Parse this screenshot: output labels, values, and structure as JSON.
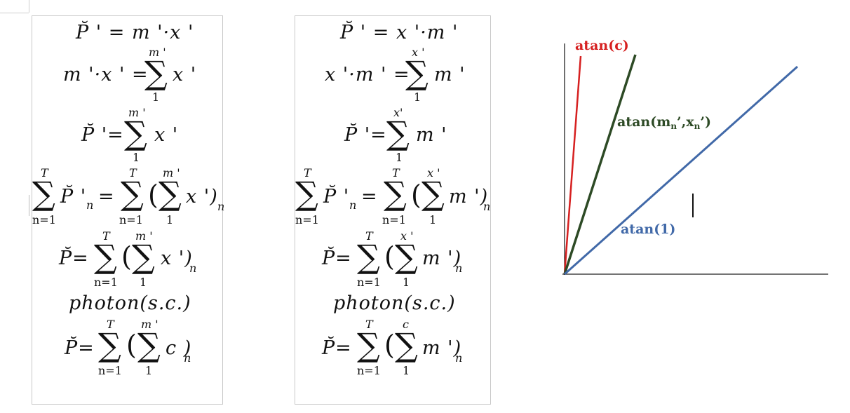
{
  "left_panel": {
    "eq1": "P̆ ' = m '·x '",
    "eq2_lhs": "m '·x ' =",
    "eq2_sum_top": "m '",
    "eq2_sum_bottom": "1",
    "eq2_rhs": "x '",
    "eq3_lhs": "P̆ '=",
    "eq3_sum_top": "m '",
    "eq3_sum_bottom": "1",
    "eq3_rhs": "x '",
    "eq4_sum1_top": "T",
    "eq4_sum1_bottom": "n=1",
    "eq4_mid": "P̆ '",
    "eq4_mid_sub": "n",
    "eq4_eq": "=",
    "eq4_sum2_top": "T",
    "eq4_sum2_bottom": "n=1",
    "eq4_sum3_top": "m '",
    "eq4_sum3_bottom": "1",
    "eq4_body": "x ')",
    "eq4_open": "(",
    "eq4_sub": "n",
    "eq5_lhs": "P̆=",
    "eq5_sum1_top": "T",
    "eq5_sum1_bottom": "n=1",
    "eq5_open": "(",
    "eq5_sum2_top": "m '",
    "eq5_sum2_bottom": "1",
    "eq5_body": "x ')",
    "eq5_sub": "n",
    "eq6": "photon(s.c.)",
    "eq7_lhs": "P̆=",
    "eq7_sum1_top": "T",
    "eq7_sum1_bottom": "n=1",
    "eq7_open": "(",
    "eq7_sum2_top": "m '",
    "eq7_sum2_bottom": "1",
    "eq7_body": "c )",
    "eq7_sub": "n"
  },
  "right_panel": {
    "eq1": "P̆ ' = x '·m '",
    "eq2_lhs": "x '·m ' =",
    "eq2_sum_top": "x '",
    "eq2_sum_bottom": "1",
    "eq2_rhs": "m '",
    "eq3_lhs": "P̆ '=",
    "eq3_sum_top": "x'",
    "eq3_sum_bottom": "1",
    "eq3_rhs": "m '",
    "eq4_sum1_top": "T",
    "eq4_sum1_bottom": "n=1",
    "eq4_mid": "P̆ '",
    "eq4_mid_sub": "n",
    "eq4_eq": "=",
    "eq4_sum2_top": "T",
    "eq4_sum2_bottom": "n=1",
    "eq4_sum3_top": "x '",
    "eq4_sum3_bottom": "1",
    "eq4_body": "m ')",
    "eq4_open": "(",
    "eq4_sub": "n",
    "eq5_lhs": "P̆=",
    "eq5_sum1_top": "T",
    "eq5_sum1_bottom": "n=1",
    "eq5_open": "(",
    "eq5_sum2_top": "x '",
    "eq5_sum2_bottom": "1",
    "eq5_body": "m ')",
    "eq5_sub": "n",
    "eq6": "photon(s.c.)",
    "eq7_lhs": "P̆=",
    "eq7_sum1_top": "T",
    "eq7_sum1_bottom": "n=1",
    "eq7_open": "(",
    "eq7_sum2_top": "c",
    "eq7_sum2_bottom": "1",
    "eq7_body": "m ')",
    "eq7_sub": "n"
  },
  "chart": {
    "label_red": "atan(c)",
    "label_green_main": "atan(m",
    "label_green_sub1": "n",
    "label_green_mid": "’,x",
    "label_green_sub2": "n",
    "label_green_end": "’)",
    "label_blue": "atan(1)",
    "colors": {
      "red": "#d62020",
      "green": "#2d4a25",
      "blue": "#4169a8",
      "axis": "#222222"
    }
  }
}
